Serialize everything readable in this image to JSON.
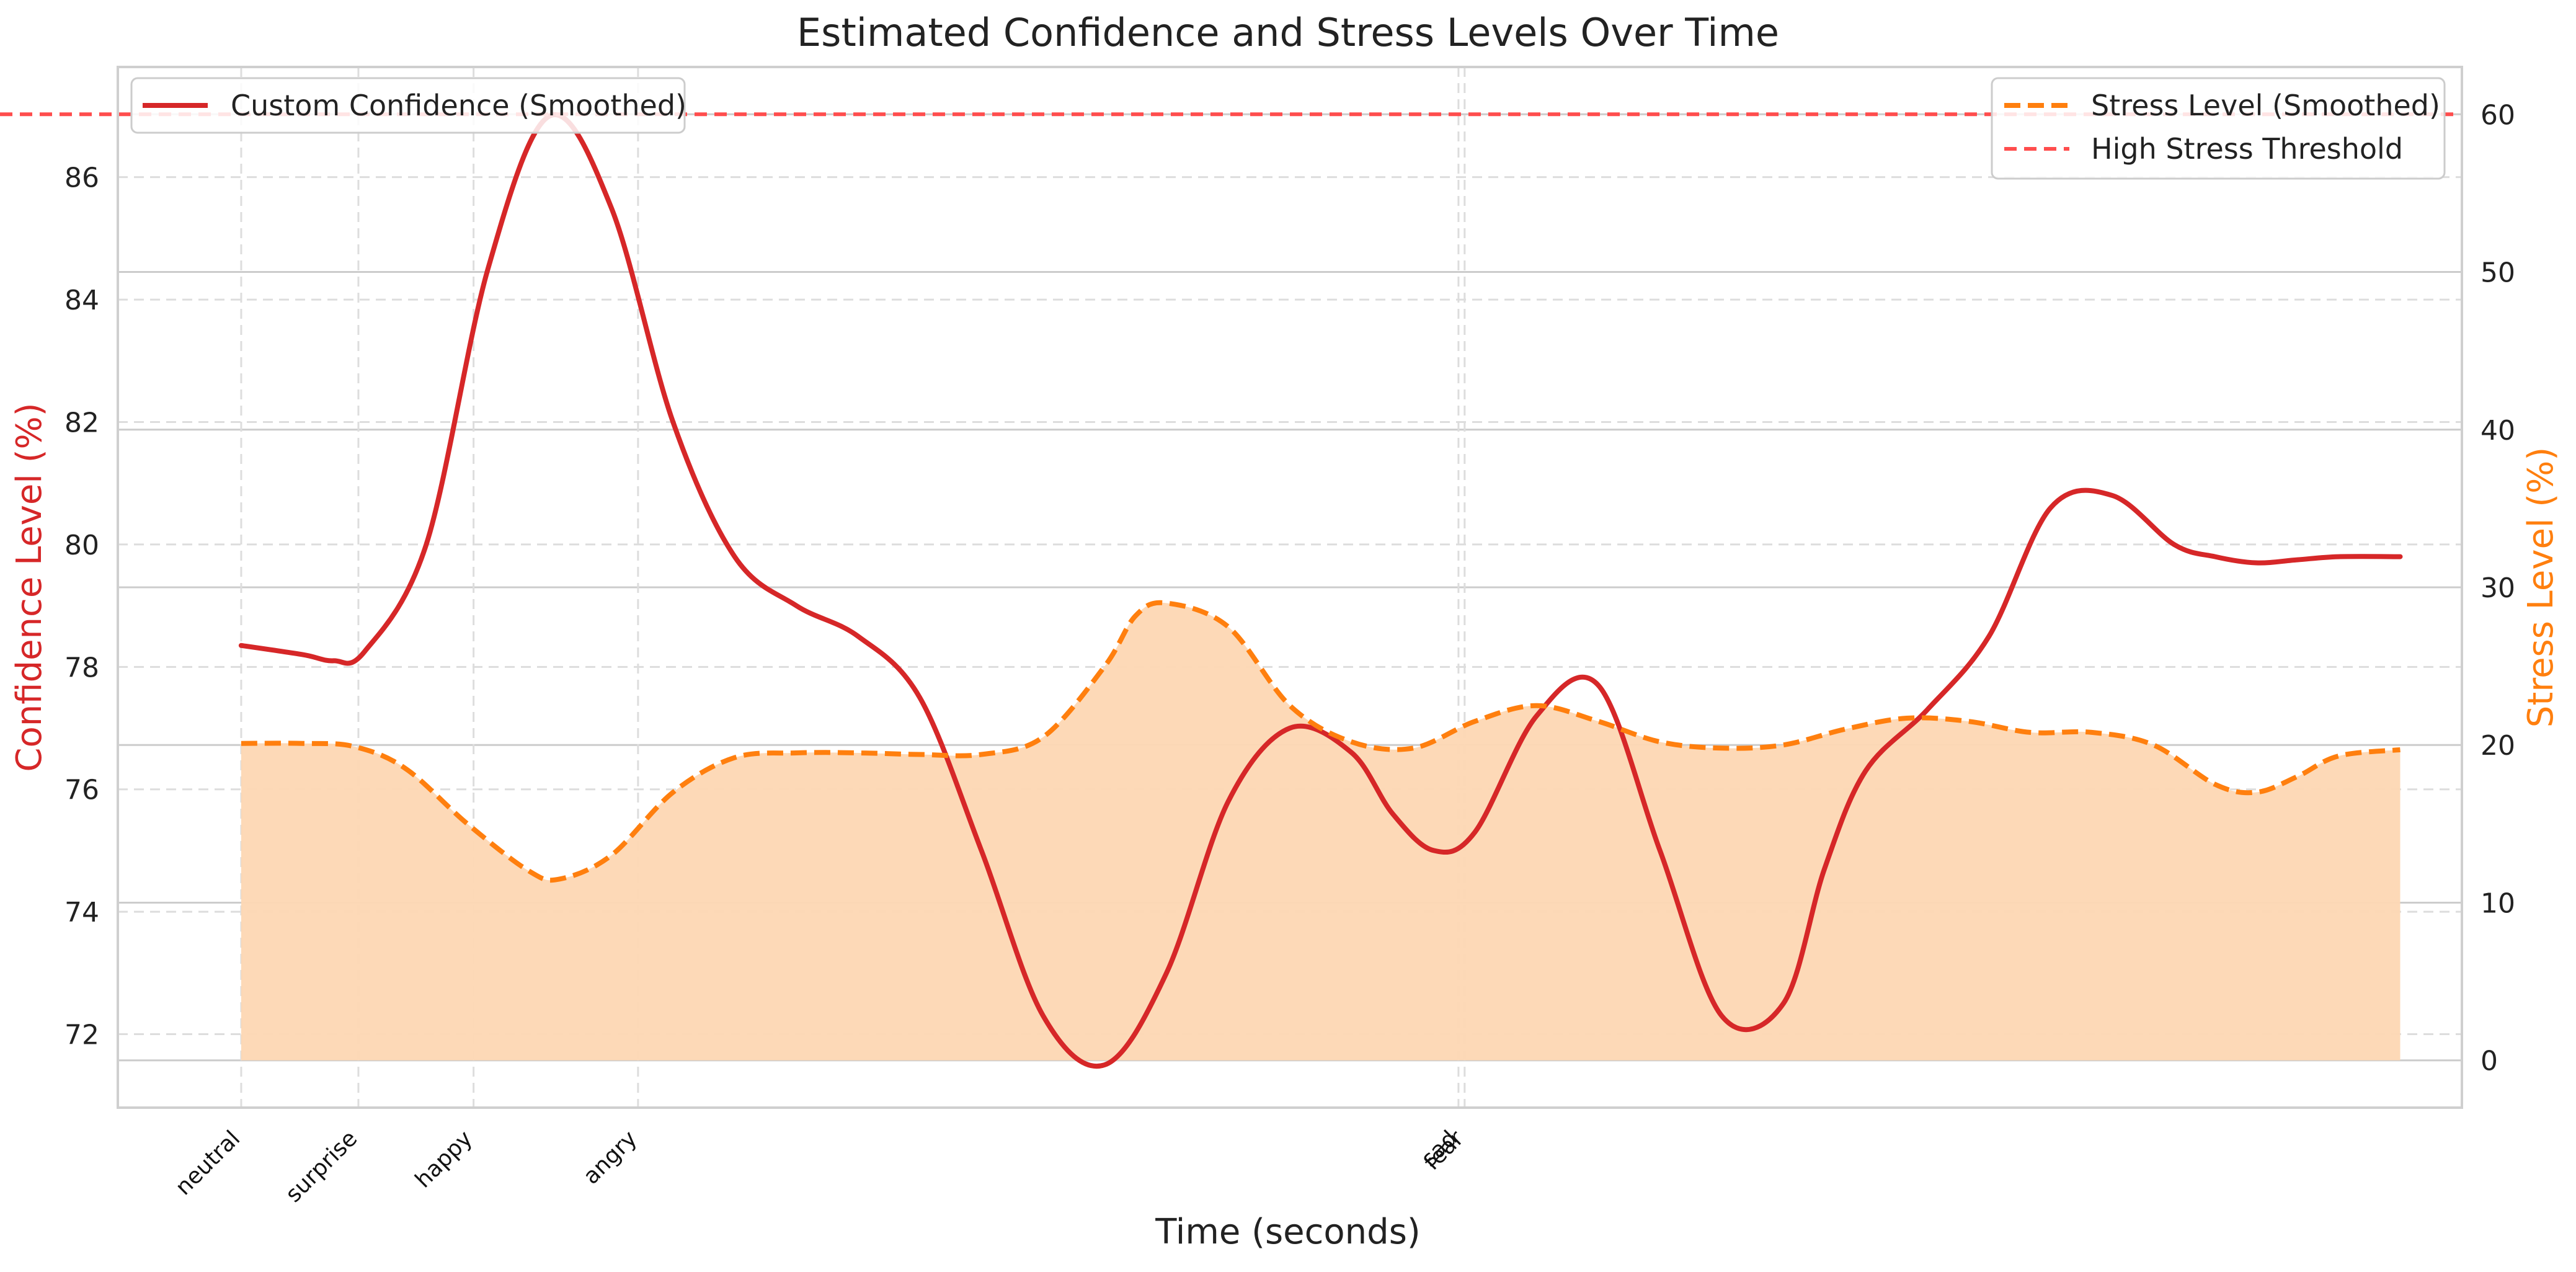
{
  "chart_data": {
    "type": "line",
    "title": "Estimated Confidence and Stress Levels Over Time",
    "xlabel": "Time (seconds)",
    "ylabel_left": "Confidence Level (%)",
    "ylabel_right": "Stress Level (%)",
    "xlim": [
      -0.6,
      10.8
    ],
    "ylim_left": [
      70.8,
      87.8
    ],
    "ylim_right": [
      -3,
      63
    ],
    "left_ticks": [
      72,
      74,
      76,
      78,
      80,
      82,
      84,
      86
    ],
    "right_ticks": [
      0,
      10,
      20,
      30,
      40,
      50,
      60
    ],
    "grid": true,
    "colors": {
      "confidence": "#d62728",
      "stress": "#ff7f0e",
      "stress_fill": "#fdd7b3",
      "threshold": "#ff4d4d",
      "confidence_label": "#d62728",
      "stress_label": "#ff7f0e"
    },
    "emotion_markers": [
      {
        "x": 0.0,
        "label": "neutral"
      },
      {
        "x": 0.57,
        "label": "surprise"
      },
      {
        "x": 1.13,
        "label": "happy"
      },
      {
        "x": 1.93,
        "label": "angry"
      },
      {
        "x": 5.92,
        "label": "sad"
      },
      {
        "x": 5.95,
        "label": "fear"
      }
    ],
    "series": [
      {
        "name": "Custom Confidence (Smoothed)",
        "axis": "left",
        "x": [
          0,
          0.3,
          0.45,
          0.6,
          0.9,
          1.2,
          1.5,
          1.8,
          2.1,
          2.4,
          2.7,
          3.0,
          3.3,
          3.6,
          3.9,
          4.2,
          4.5,
          4.8,
          5.1,
          5.4,
          5.6,
          5.8,
          6.0,
          6.3,
          6.6,
          6.9,
          7.2,
          7.5,
          7.7,
          7.9,
          8.2,
          8.5,
          8.8,
          9.1,
          9.4,
          9.6,
          9.8,
          10.0,
          10.2,
          10.5
        ],
        "y": [
          78.35,
          78.2,
          78.1,
          78.25,
          80.0,
          84.5,
          87.0,
          85.5,
          82.0,
          79.8,
          79.0,
          78.5,
          77.5,
          75.0,
          72.3,
          71.5,
          73.0,
          75.8,
          77.0,
          76.6,
          75.6,
          75.0,
          75.3,
          77.2,
          77.7,
          75.0,
          72.3,
          72.5,
          74.7,
          76.3,
          77.3,
          78.5,
          80.6,
          80.8,
          80.0,
          79.8,
          79.7,
          79.75,
          79.8,
          79.8
        ]
      },
      {
        "name": "Stress Level (Smoothed)",
        "axis": "right",
        "x": [
          0,
          0.3,
          0.55,
          0.8,
          1.1,
          1.4,
          1.55,
          1.8,
          2.1,
          2.4,
          2.7,
          3.0,
          3.3,
          3.6,
          3.9,
          4.2,
          4.35,
          4.5,
          4.8,
          5.1,
          5.4,
          5.7,
          6.0,
          6.3,
          6.6,
          6.9,
          7.2,
          7.5,
          7.8,
          8.1,
          8.4,
          8.7,
          9.0,
          9.3,
          9.6,
          9.8,
          10.0,
          10.2,
          10.5
        ],
        "y": [
          20.1,
          20.1,
          19.9,
          18.5,
          15.0,
          12.0,
          11.5,
          13.0,
          17.0,
          19.2,
          19.5,
          19.5,
          19.4,
          19.4,
          20.5,
          25.0,
          28.2,
          29.0,
          27.5,
          22.5,
          20.2,
          19.8,
          21.5,
          22.5,
          21.5,
          20.2,
          19.8,
          20.0,
          21.0,
          21.7,
          21.5,
          20.8,
          20.8,
          20.0,
          17.5,
          17.0,
          18.0,
          19.3,
          19.7
        ]
      },
      {
        "name": "High Stress Threshold",
        "axis": "right",
        "y": 60
      }
    ]
  }
}
